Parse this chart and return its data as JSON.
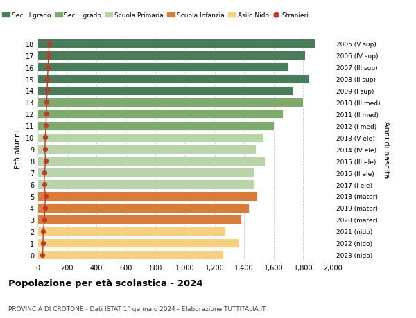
{
  "ages": [
    18,
    17,
    16,
    15,
    14,
    13,
    12,
    11,
    10,
    9,
    8,
    7,
    6,
    5,
    4,
    3,
    2,
    1,
    0
  ],
  "years": [
    "2005 (V sup)",
    "2006 (IV sup)",
    "2007 (III sup)",
    "2008 (II sup)",
    "2009 (I sup)",
    "2010 (III med)",
    "2011 (II med)",
    "2012 (I med)",
    "2013 (V ele)",
    "2014 (IV ele)",
    "2015 (III ele)",
    "2016 (II ele)",
    "2017 (I ele)",
    "2018 (mater)",
    "2019 (mater)",
    "2020 (mater)",
    "2021 (nido)",
    "2022 (nido)",
    "2023 (nido)"
  ],
  "values": [
    1880,
    1810,
    1700,
    1840,
    1730,
    1800,
    1660,
    1600,
    1530,
    1480,
    1540,
    1470,
    1470,
    1490,
    1430,
    1380,
    1270,
    1360,
    1260
  ],
  "stranieri": [
    80,
    75,
    72,
    68,
    66,
    62,
    60,
    57,
    53,
    50,
    55,
    48,
    45,
    55,
    50,
    48,
    38,
    38,
    35
  ],
  "bar_colors": [
    "#4a7c59",
    "#4a7c59",
    "#4a7c59",
    "#4a7c59",
    "#4a7c59",
    "#7faa6e",
    "#7faa6e",
    "#7faa6e",
    "#b8d4a8",
    "#b8d4a8",
    "#b8d4a8",
    "#b8d4a8",
    "#b8d4a8",
    "#d97b3a",
    "#d97b3a",
    "#d97b3a",
    "#f5d080",
    "#f5d080",
    "#f5d080"
  ],
  "legend_labels": [
    "Sec. II grado",
    "Sec. I grado",
    "Scuola Primaria",
    "Scuola Infanzia",
    "Asilo Nido",
    "Stranieri"
  ],
  "legend_colors": [
    "#4a7c59",
    "#7faa6e",
    "#b8d4a8",
    "#d97b3a",
    "#f5d080",
    "#c0392b"
  ],
  "stranieri_color": "#c0392b",
  "ylabel_left": "Età alunni",
  "ylabel_right": "Anni di nascita",
  "title": "Popolazione per età scolastica - 2024",
  "subtitle": "PROVINCIA DI CROTONE - Dati ISTAT 1° gennaio 2024 - Elaborazione TUTTITALIA.IT",
  "xlim": [
    0,
    2000
  ],
  "xticks": [
    0,
    200,
    400,
    600,
    800,
    1000,
    1200,
    1400,
    1600,
    1800,
    2000
  ],
  "xtick_labels": [
    "0",
    "200",
    "400",
    "600",
    "800",
    "1,000",
    "1,200",
    "1,400",
    "1,600",
    "1,800",
    "2,000"
  ],
  "bg_color": "#ffffff",
  "grid_color": "#cccccc",
  "bar_height": 0.78
}
